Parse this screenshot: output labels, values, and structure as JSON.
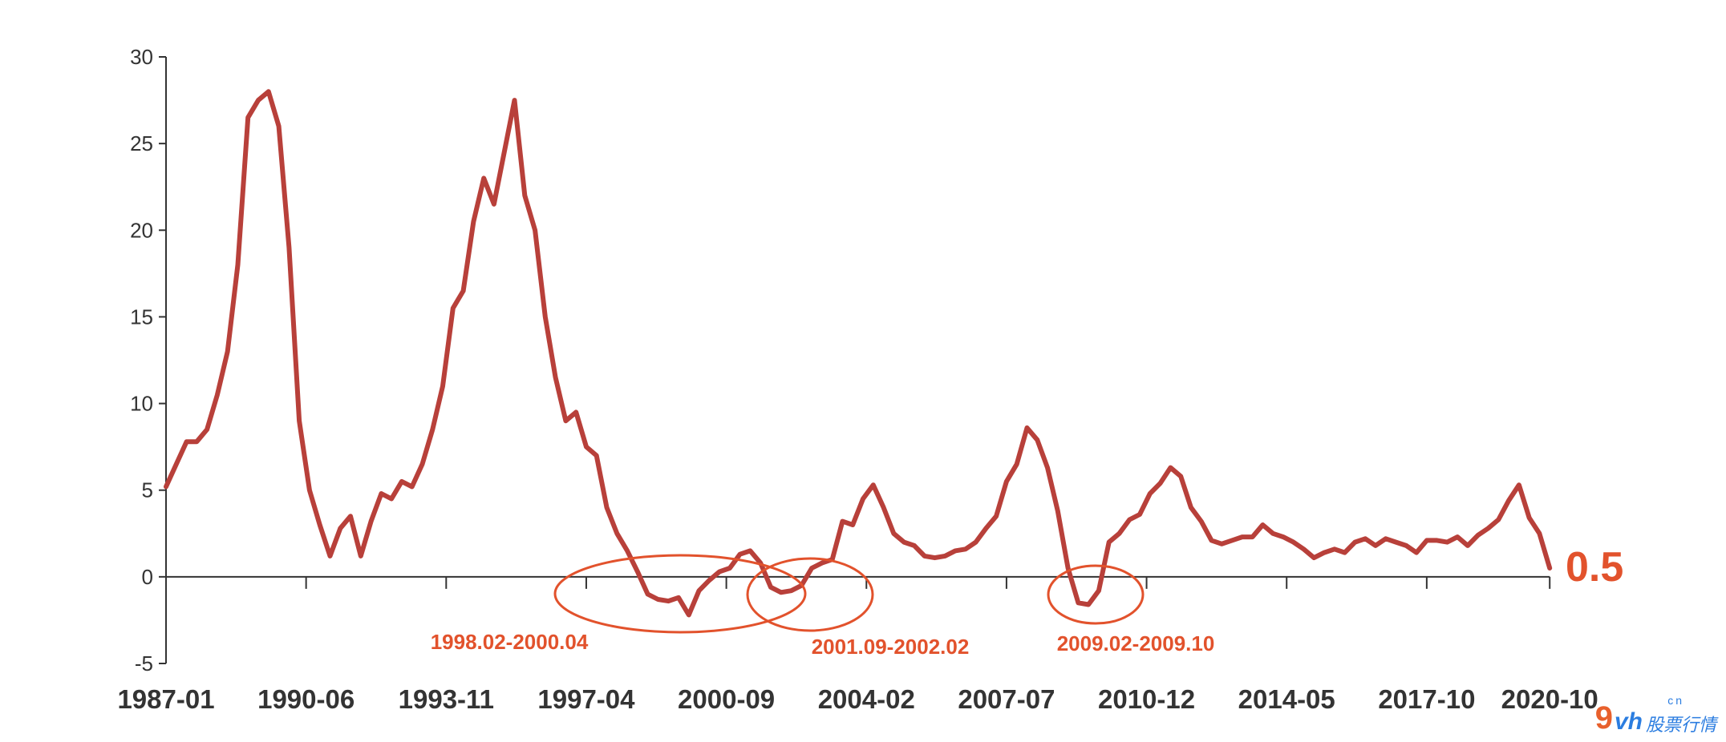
{
  "chart_data": {
    "type": "line",
    "ylim": [
      -5,
      30
    ],
    "yticks": [
      -5,
      0,
      5,
      10,
      15,
      20,
      25,
      30
    ],
    "xlim": [
      "1987-01",
      "2021-01"
    ],
    "xticks": [
      "1987-01",
      "1990-06",
      "1993-11",
      "1997-04",
      "2000-09",
      "2004-02",
      "2007-07",
      "2010-12",
      "2014-05",
      "2017-10",
      "2020-10"
    ],
    "grid": false,
    "colors": {
      "line": "#b8403a",
      "axis": "#333333",
      "annotation": "#e2522c"
    },
    "series": [
      {
        "x": [
          "1987-01",
          "1987-04",
          "1987-07",
          "1987-10",
          "1988-01",
          "1988-04",
          "1988-07",
          "1988-10",
          "1989-01",
          "1989-04",
          "1989-07",
          "1989-10",
          "1990-01",
          "1990-04",
          "1990-07",
          "1990-10",
          "1991-01",
          "1991-04",
          "1991-07",
          "1991-10",
          "1992-01",
          "1992-04",
          "1992-07",
          "1992-10",
          "1993-01",
          "1993-04",
          "1993-07",
          "1993-10",
          "1994-01",
          "1994-04",
          "1994-07",
          "1994-10",
          "1995-01",
          "1995-04",
          "1995-07",
          "1995-10",
          "1996-01",
          "1996-04",
          "1996-07",
          "1996-10",
          "1997-01",
          "1997-04",
          "1997-07",
          "1997-10",
          "1998-01",
          "1998-04",
          "1998-07",
          "1998-10",
          "1999-01",
          "1999-04",
          "1999-07",
          "1999-10",
          "2000-01",
          "2000-04",
          "2000-07",
          "2000-10",
          "2001-01",
          "2001-04",
          "2001-07",
          "2001-10",
          "2002-01",
          "2002-04",
          "2002-07",
          "2002-10",
          "2003-01",
          "2003-04",
          "2003-07",
          "2003-10",
          "2004-01",
          "2004-04",
          "2004-07",
          "2004-10",
          "2005-01",
          "2005-04",
          "2005-07",
          "2005-10",
          "2006-01",
          "2006-04",
          "2006-07",
          "2006-10",
          "2007-01",
          "2007-04",
          "2007-07",
          "2007-10",
          "2008-01",
          "2008-04",
          "2008-07",
          "2008-10",
          "2009-01",
          "2009-04",
          "2009-07",
          "2009-10",
          "2010-01",
          "2010-04",
          "2010-07",
          "2010-10",
          "2011-01",
          "2011-04",
          "2011-07",
          "2011-10",
          "2012-01",
          "2012-04",
          "2012-07",
          "2012-10",
          "2013-01",
          "2013-04",
          "2013-07",
          "2013-10",
          "2014-01",
          "2014-04",
          "2014-07",
          "2014-10",
          "2015-01",
          "2015-04",
          "2015-07",
          "2015-10",
          "2016-01",
          "2016-04",
          "2016-07",
          "2016-10",
          "2017-01",
          "2017-04",
          "2017-07",
          "2017-10",
          "2018-01",
          "2018-04",
          "2018-07",
          "2018-10",
          "2019-01",
          "2019-04",
          "2019-07",
          "2019-10",
          "2020-01",
          "2020-04",
          "2020-07",
          "2020-10"
        ],
        "values": [
          5.2,
          6.5,
          7.8,
          7.8,
          8.5,
          10.5,
          13.0,
          18.0,
          26.5,
          27.5,
          28.0,
          26.0,
          19.0,
          9.0,
          5.0,
          3.0,
          1.2,
          2.8,
          3.5,
          1.2,
          3.2,
          4.8,
          4.5,
          5.5,
          5.2,
          6.5,
          8.5,
          11.0,
          15.5,
          16.5,
          20.5,
          23.0,
          21.5,
          24.5,
          27.5,
          22.0,
          20.0,
          15.0,
          11.5,
          9.0,
          9.5,
          7.5,
          7.0,
          4.0,
          2.5,
          1.5,
          0.3,
          -1.0,
          -1.3,
          -1.4,
          -1.2,
          -2.2,
          -0.8,
          -0.2,
          0.3,
          0.5,
          1.3,
          1.5,
          0.8,
          -0.6,
          -0.9,
          -0.8,
          -0.5,
          0.5,
          0.8,
          1.0,
          3.2,
          3.0,
          4.5,
          5.3,
          4.0,
          2.5,
          2.0,
          1.8,
          1.2,
          1.1,
          1.2,
          1.5,
          1.6,
          2.0,
          2.8,
          3.5,
          5.5,
          6.5,
          8.6,
          7.9,
          6.3,
          3.8,
          0.5,
          -1.5,
          -1.6,
          -0.8,
          2.0,
          2.5,
          3.3,
          3.6,
          4.8,
          5.4,
          6.3,
          5.8,
          4.0,
          3.2,
          2.1,
          1.9,
          2.1,
          2.3,
          2.3,
          3.0,
          2.5,
          2.3,
          2.0,
          1.6,
          1.1,
          1.4,
          1.6,
          1.4,
          2.0,
          2.2,
          1.8,
          2.2,
          2.0,
          1.8,
          1.4,
          2.1,
          2.1,
          2.0,
          2.3,
          1.8,
          2.4,
          2.8,
          3.3,
          4.4,
          5.3,
          3.4,
          2.5,
          0.5
        ]
      }
    ],
    "annotations": [
      {
        "label": "1998.02-2000.04",
        "x_start": "1998-02",
        "x_end": "2000-04"
      },
      {
        "label": "2001.09-2002.02",
        "x_start": "2001-09",
        "x_end": "2002-02"
      },
      {
        "label": "2009.02-2009.10",
        "x_start": "2009-02",
        "x_end": "2009-10"
      }
    ],
    "last_value_label": "0.5"
  },
  "watermark": {
    "nine": "9",
    "vh": "vh",
    "cn": "cn",
    "name": "股票行情"
  }
}
